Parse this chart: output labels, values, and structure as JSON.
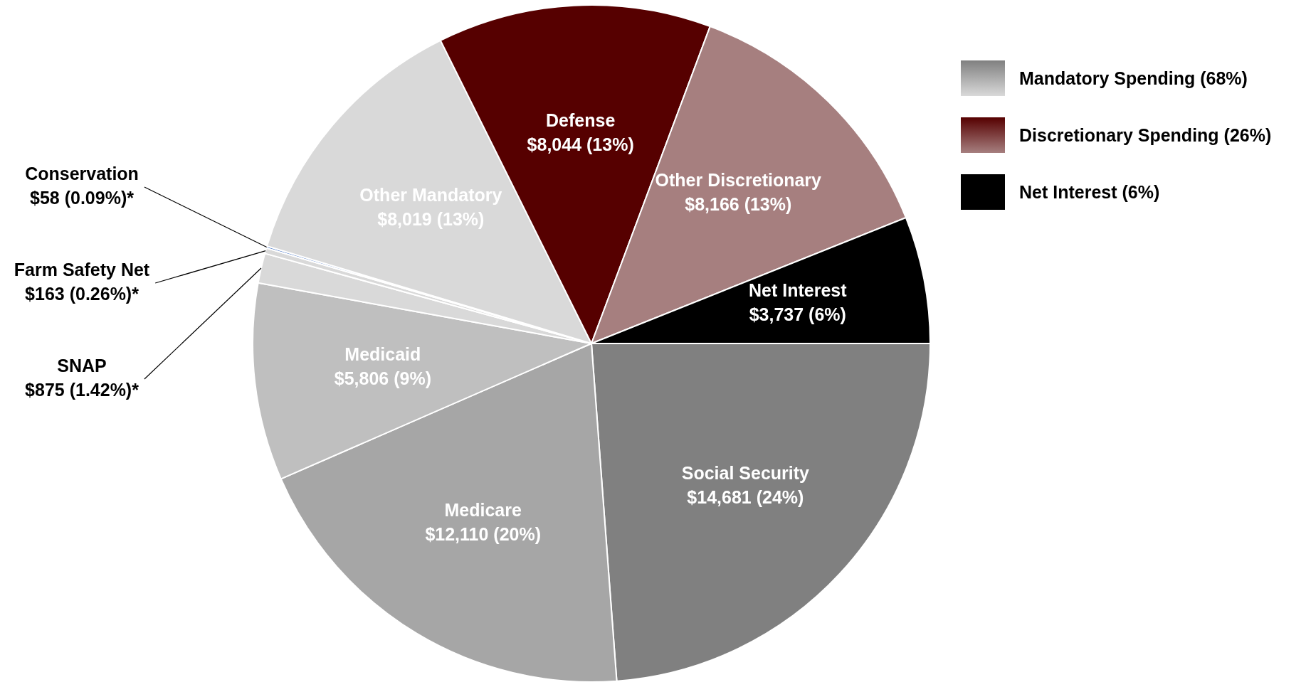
{
  "chart_data": {
    "type": "pie",
    "categories": [
      "Social Security",
      "Medicare",
      "Medicaid",
      "SNAP",
      "Farm Safety Net",
      "Conservation",
      "Other Mandatory",
      "Defense",
      "Other Discretionary",
      "Net Interest"
    ],
    "values": [
      14681,
      12110,
      5806,
      875,
      163,
      58,
      8019,
      8044,
      8166,
      3737
    ],
    "value_labels": [
      "$14,681 (24%)",
      "$12,110 (20%)",
      "$5,806 (9%)",
      "$875 (1.42%)*",
      "$163 (0.26%)*",
      "$58 (0.09%)*",
      "$8,019 (13%)",
      "$8,044 (13%)",
      "$8,166 (13%)",
      "$3,737 (6%)"
    ],
    "colors": [
      "#808080",
      "#a6a6a6",
      "#bfbfbf",
      "#d9d9d9",
      "#d9d9d9",
      "#4472c4",
      "#d9d9d9",
      "#560000",
      "#a67f7f",
      "#000000"
    ],
    "annotations": [
      "Mandatory Spending (68%)",
      "Discretionary Spending (26%)",
      "Net Interest (6%)"
    ],
    "legend": false
  }
}
